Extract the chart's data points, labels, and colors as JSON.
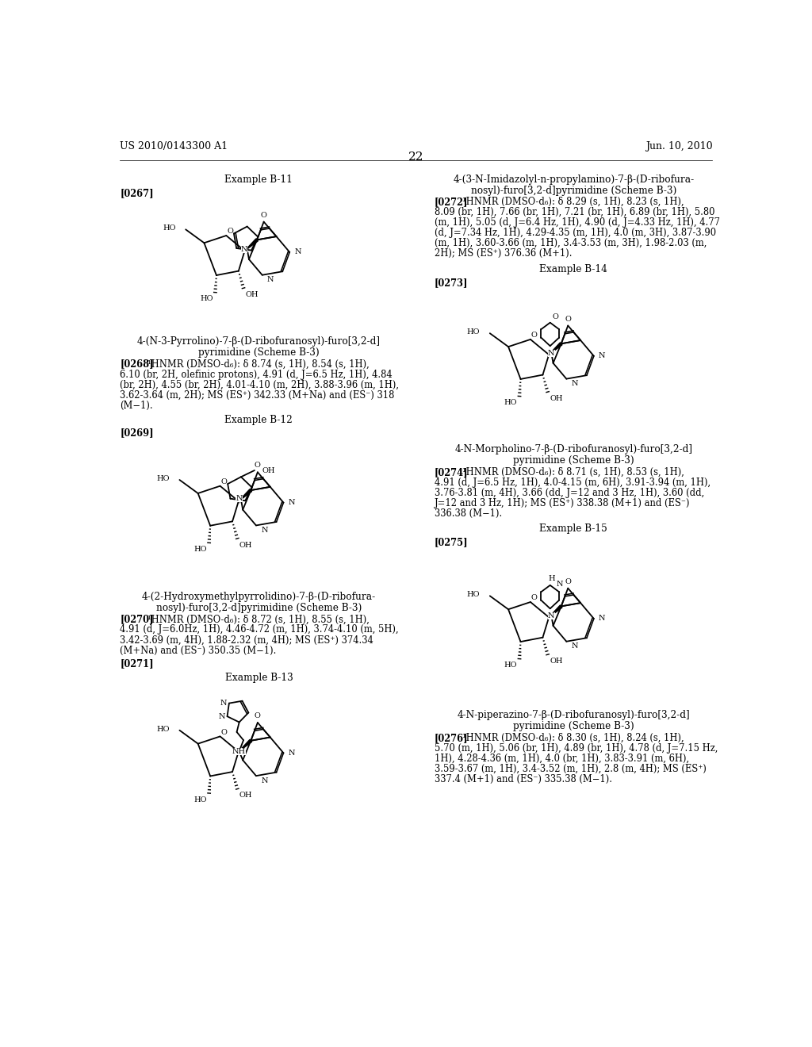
{
  "bg_color": "#ffffff",
  "header_left": "US 2010/0143300 A1",
  "header_right": "Jun. 10, 2010",
  "page_number": "22"
}
